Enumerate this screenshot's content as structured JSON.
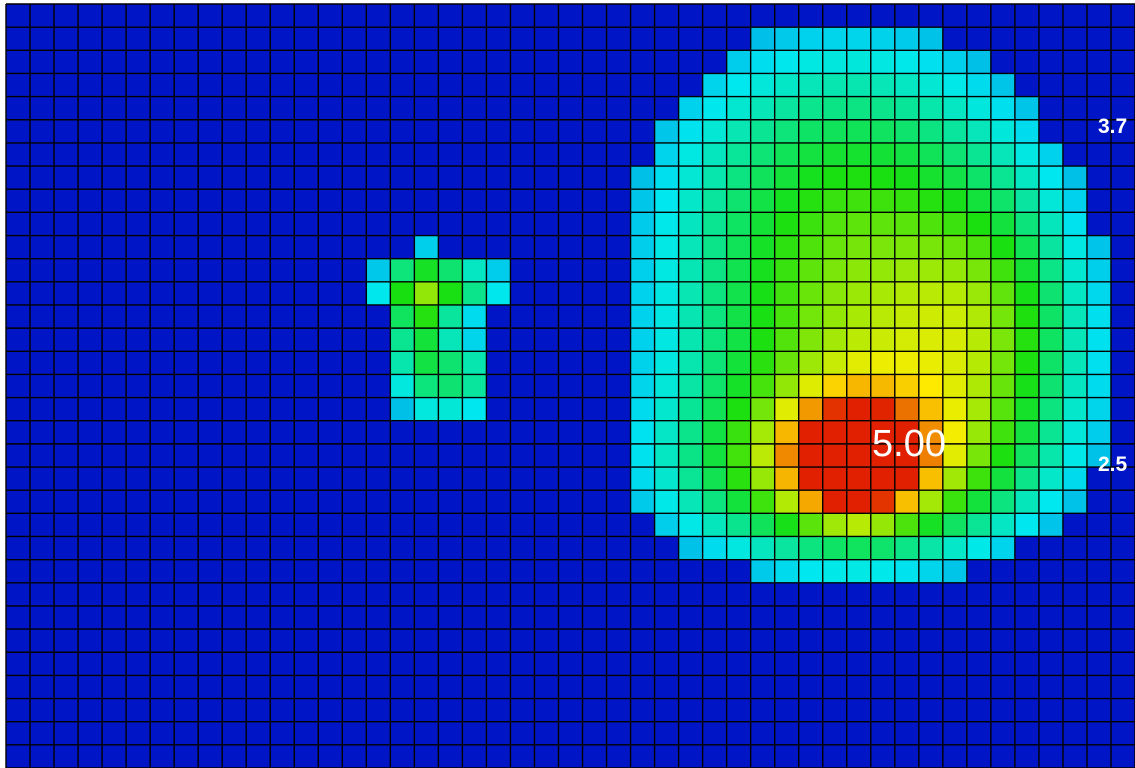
{
  "chart_data": {
    "type": "heatmap",
    "title": "",
    "xlabel": "",
    "ylabel": "",
    "grid": true,
    "colormap": [
      "#0018c8",
      "#00e8f0",
      "#18e010",
      "#ffee00",
      "#e02000"
    ],
    "background_color": "#0016c6",
    "grid_color": "#000000",
    "scale_labels": [
      "3.7",
      "2.5"
    ],
    "peak": {
      "label": "5.00",
      "value": 5.0
    },
    "hotspots": [
      {
        "name": "main-blob-upper",
        "cx": 0.745,
        "cy": 0.23,
        "sx": 0.115,
        "sy": 0.14,
        "amp": 0.35
      },
      {
        "name": "main-blob-middle",
        "cx": 0.77,
        "cy": 0.46,
        "sx": 0.12,
        "sy": 0.13,
        "amp": 0.45
      },
      {
        "name": "main-blob-lower",
        "cx": 0.74,
        "cy": 0.62,
        "sx": 0.11,
        "sy": 0.08,
        "amp": 0.38
      },
      {
        "name": "main-blob-right",
        "cx": 0.87,
        "cy": 0.42,
        "sx": 0.05,
        "sy": 0.12,
        "amp": 0.2
      },
      {
        "name": "peak-core",
        "cx": 0.753,
        "cy": 0.6,
        "sx": 0.035,
        "sy": 0.045,
        "amp": 0.72
      },
      {
        "name": "peak-halo",
        "cx": 0.76,
        "cy": 0.59,
        "sx": 0.065,
        "sy": 0.07,
        "amp": 0.22
      },
      {
        "name": "small-patch-top",
        "cx": 0.385,
        "cy": 0.37,
        "sx": 0.04,
        "sy": 0.028,
        "amp": 0.38
      },
      {
        "name": "small-patch-left",
        "cx": 0.365,
        "cy": 0.44,
        "sx": 0.018,
        "sy": 0.07,
        "amp": 0.36
      },
      {
        "name": "small-patch-mid",
        "cx": 0.405,
        "cy": 0.49,
        "sx": 0.02,
        "sy": 0.04,
        "amp": 0.3
      }
    ]
  }
}
